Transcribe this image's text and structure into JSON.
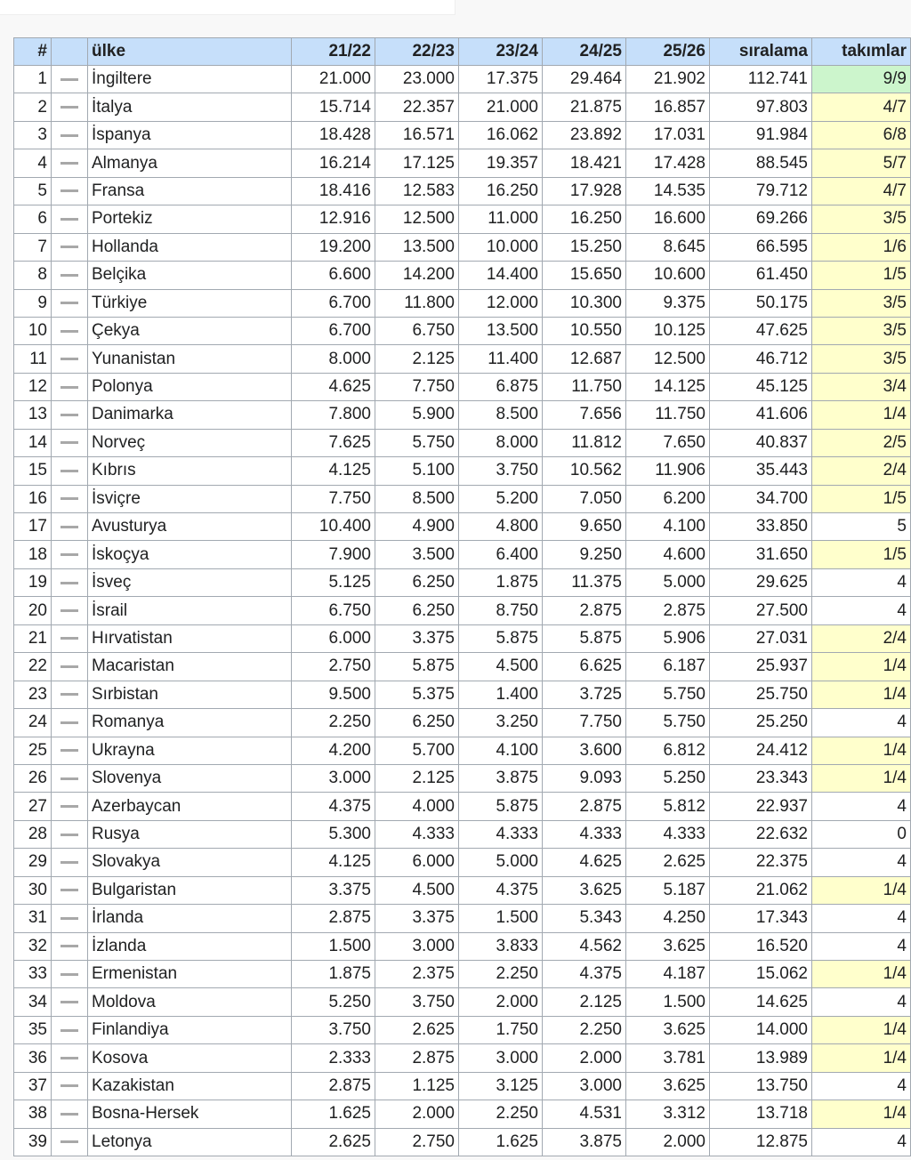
{
  "colors": {
    "header": "#c6dffa",
    "green": "#ccf5cc",
    "yellow": "#ffffcc",
    "border": "#a2a9b1"
  },
  "headers": [
    "#",
    "",
    "ülke",
    "21/22",
    "22/23",
    "23/24",
    "24/25",
    "25/26",
    "sıralama",
    "takımlar"
  ],
  "rows": [
    [
      "1",
      "İngiltere",
      "21.000",
      "23.000",
      "17.375",
      "29.464",
      "21.902",
      "112.741",
      "9/9",
      "green"
    ],
    [
      "2",
      "İtalya",
      "15.714",
      "22.357",
      "21.000",
      "21.875",
      "16.857",
      "97.803",
      "4/7",
      "yellow"
    ],
    [
      "3",
      "İspanya",
      "18.428",
      "16.571",
      "16.062",
      "23.892",
      "17.031",
      "91.984",
      "6/8",
      "yellow"
    ],
    [
      "4",
      "Almanya",
      "16.214",
      "17.125",
      "19.357",
      "18.421",
      "17.428",
      "88.545",
      "5/7",
      "yellow"
    ],
    [
      "5",
      "Fransa",
      "18.416",
      "12.583",
      "16.250",
      "17.928",
      "14.535",
      "79.712",
      "4/7",
      "yellow"
    ],
    [
      "6",
      "Portekiz",
      "12.916",
      "12.500",
      "11.000",
      "16.250",
      "16.600",
      "69.266",
      "3/5",
      "yellow"
    ],
    [
      "7",
      "Hollanda",
      "19.200",
      "13.500",
      "10.000",
      "15.250",
      "8.645",
      "66.595",
      "1/6",
      "yellow"
    ],
    [
      "8",
      "Belçika",
      "6.600",
      "14.200",
      "14.400",
      "15.650",
      "10.600",
      "61.450",
      "1/5",
      "yellow"
    ],
    [
      "9",
      "Türkiye",
      "6.700",
      "11.800",
      "12.000",
      "10.300",
      "9.375",
      "50.175",
      "3/5",
      "yellow"
    ],
    [
      "10",
      "Çekya",
      "6.700",
      "6.750",
      "13.500",
      "10.550",
      "10.125",
      "47.625",
      "3/5",
      "yellow"
    ],
    [
      "11",
      "Yunanistan",
      "8.000",
      "2.125",
      "11.400",
      "12.687",
      "12.500",
      "46.712",
      "3/5",
      "yellow"
    ],
    [
      "12",
      "Polonya",
      "4.625",
      "7.750",
      "6.875",
      "11.750",
      "14.125",
      "45.125",
      "3/4",
      "yellow"
    ],
    [
      "13",
      "Danimarka",
      "7.800",
      "5.900",
      "8.500",
      "7.656",
      "11.750",
      "41.606",
      "1/4",
      "yellow"
    ],
    [
      "14",
      "Norveç",
      "7.625",
      "5.750",
      "8.000",
      "11.812",
      "7.650",
      "40.837",
      "2/5",
      "yellow"
    ],
    [
      "15",
      "Kıbrıs",
      "4.125",
      "5.100",
      "3.750",
      "10.562",
      "11.906",
      "35.443",
      "2/4",
      "yellow"
    ],
    [
      "16",
      "İsviçre",
      "7.750",
      "8.500",
      "5.200",
      "7.050",
      "6.200",
      "34.700",
      "1/5",
      "yellow"
    ],
    [
      "17",
      "Avusturya",
      "10.400",
      "4.900",
      "4.800",
      "9.650",
      "4.100",
      "33.850",
      "5",
      ""
    ],
    [
      "18",
      "İskoçya",
      "7.900",
      "3.500",
      "6.400",
      "9.250",
      "4.600",
      "31.650",
      "1/5",
      "yellow"
    ],
    [
      "19",
      "İsveç",
      "5.125",
      "6.250",
      "1.875",
      "11.375",
      "5.000",
      "29.625",
      "4",
      ""
    ],
    [
      "20",
      "İsrail",
      "6.750",
      "6.250",
      "8.750",
      "2.875",
      "2.875",
      "27.500",
      "4",
      ""
    ],
    [
      "21",
      "Hırvatistan",
      "6.000",
      "3.375",
      "5.875",
      "5.875",
      "5.906",
      "27.031",
      "2/4",
      "yellow"
    ],
    [
      "22",
      "Macaristan",
      "2.750",
      "5.875",
      "4.500",
      "6.625",
      "6.187",
      "25.937",
      "1/4",
      "yellow"
    ],
    [
      "23",
      "Sırbistan",
      "9.500",
      "5.375",
      "1.400",
      "3.725",
      "5.750",
      "25.750",
      "1/4",
      "yellow"
    ],
    [
      "24",
      "Romanya",
      "2.250",
      "6.250",
      "3.250",
      "7.750",
      "5.750",
      "25.250",
      "4",
      ""
    ],
    [
      "25",
      "Ukrayna",
      "4.200",
      "5.700",
      "4.100",
      "3.600",
      "6.812",
      "24.412",
      "1/4",
      "yellow"
    ],
    [
      "26",
      "Slovenya",
      "3.000",
      "2.125",
      "3.875",
      "9.093",
      "5.250",
      "23.343",
      "1/4",
      "yellow"
    ],
    [
      "27",
      "Azerbaycan",
      "4.375",
      "4.000",
      "5.875",
      "2.875",
      "5.812",
      "22.937",
      "4",
      ""
    ],
    [
      "28",
      "Rusya",
      "5.300",
      "4.333",
      "4.333",
      "4.333",
      "4.333",
      "22.632",
      "0",
      ""
    ],
    [
      "29",
      "Slovakya",
      "4.125",
      "6.000",
      "5.000",
      "4.625",
      "2.625",
      "22.375",
      "4",
      ""
    ],
    [
      "30",
      "Bulgaristan",
      "3.375",
      "4.500",
      "4.375",
      "3.625",
      "5.187",
      "21.062",
      "1/4",
      "yellow"
    ],
    [
      "31",
      "İrlanda",
      "2.875",
      "3.375",
      "1.500",
      "5.343",
      "4.250",
      "17.343",
      "4",
      ""
    ],
    [
      "32",
      "İzlanda",
      "1.500",
      "3.000",
      "3.833",
      "4.562",
      "3.625",
      "16.520",
      "4",
      ""
    ],
    [
      "33",
      "Ermenistan",
      "1.875",
      "2.375",
      "2.250",
      "4.375",
      "4.187",
      "15.062",
      "1/4",
      "yellow"
    ],
    [
      "34",
      "Moldova",
      "5.250",
      "3.750",
      "2.000",
      "2.125",
      "1.500",
      "14.625",
      "4",
      ""
    ],
    [
      "35",
      "Finlandiya",
      "3.750",
      "2.625",
      "1.750",
      "2.250",
      "3.625",
      "14.000",
      "1/4",
      "yellow"
    ],
    [
      "36",
      "Kosova",
      "2.333",
      "2.875",
      "3.000",
      "2.000",
      "3.781",
      "13.989",
      "1/4",
      "yellow"
    ],
    [
      "37",
      "Kazakistan",
      "2.875",
      "1.125",
      "3.125",
      "3.000",
      "3.625",
      "13.750",
      "4",
      ""
    ],
    [
      "38",
      "Bosna-Hersek",
      "1.625",
      "2.000",
      "2.250",
      "4.531",
      "3.312",
      "13.718",
      "1/4",
      "yellow"
    ],
    [
      "39",
      "Letonya",
      "2.625",
      "2.750",
      "1.625",
      "3.875",
      "2.000",
      "12.875",
      "4",
      ""
    ]
  ]
}
